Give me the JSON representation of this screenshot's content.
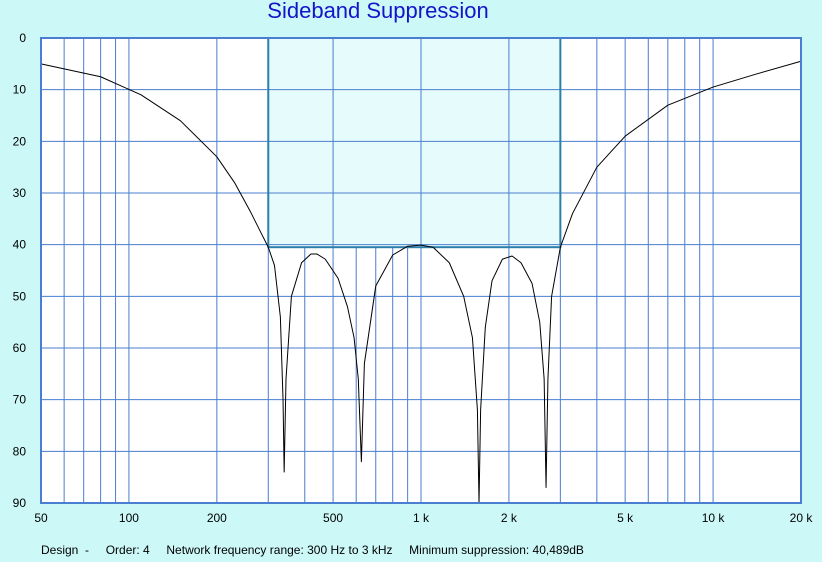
{
  "chart_data": {
    "type": "line",
    "title": "Sideband Suppression",
    "xlabel": "",
    "ylabel": "",
    "x_scale": "log",
    "xlim": [
      50,
      20000
    ],
    "ylim": [
      0,
      90
    ],
    "y_inverted": true,
    "grid": true,
    "x_ticks": [
      {
        "value": 50,
        "label": "50"
      },
      {
        "value": 100,
        "label": "100"
      },
      {
        "value": 200,
        "label": "200"
      },
      {
        "value": 500,
        "label": "500"
      },
      {
        "value": 1000,
        "label": "1 k"
      },
      {
        "value": 2000,
        "label": "2 k"
      },
      {
        "value": 5000,
        "label": "5 k"
      },
      {
        "value": 10000,
        "label": "10 k"
      },
      {
        "value": 20000,
        "label": "20 k"
      }
    ],
    "x_minor_grid": [
      60,
      70,
      80,
      90,
      300,
      400,
      600,
      700,
      800,
      900,
      3000,
      4000,
      6000,
      7000,
      8000,
      9000
    ],
    "y_ticks": [
      {
        "value": 0,
        "label": "0"
      },
      {
        "value": 10,
        "label": "10"
      },
      {
        "value": 20,
        "label": "20"
      },
      {
        "value": 30,
        "label": "30"
      },
      {
        "value": 40,
        "label": "40"
      },
      {
        "value": 50,
        "label": "50"
      },
      {
        "value": 60,
        "label": "60"
      },
      {
        "value": 70,
        "label": "70"
      },
      {
        "value": 80,
        "label": "80"
      },
      {
        "value": 90,
        "label": "90"
      }
    ],
    "band": {
      "x": [
        300,
        3000
      ],
      "y": [
        0,
        40.49
      ]
    },
    "series": [
      {
        "x": [
          50,
          80,
          110,
          150,
          200,
          230,
          260,
          285,
          300,
          315,
          330,
          337,
          340,
          345,
          360,
          390,
          420,
          440,
          470,
          520,
          560,
          590,
          610,
          625,
          640,
          700,
          800,
          900,
          1000,
          1100,
          1250,
          1400,
          1500,
          1560,
          1580,
          1600,
          1660,
          1750,
          1900,
          2050,
          2200,
          2400,
          2550,
          2640,
          2680,
          2720,
          2800,
          3000,
          3300,
          4000,
          5000,
          7000,
          10000,
          14000,
          20000
        ],
        "values": [
          5,
          7.5,
          11,
          16,
          23,
          28,
          33.5,
          38,
          40.5,
          44,
          54,
          70,
          84,
          66,
          50,
          43.5,
          41.8,
          41.8,
          42.8,
          46.5,
          52,
          58,
          66,
          82,
          63,
          48,
          42,
          40.3,
          40.1,
          40.5,
          43.5,
          50,
          58,
          72,
          90,
          72,
          56,
          47,
          42.8,
          42.2,
          43.5,
          47.5,
          55,
          66,
          87,
          66,
          50,
          40.5,
          34,
          25,
          19,
          13,
          9.5,
          7,
          4.5
        ],
        "color": "#000000"
      }
    ],
    "colors": {
      "grid": "#4a7ed0",
      "band_fill": "#e6fbfb",
      "band_edge": "#2c7faa",
      "background": "#cdf8f8",
      "plot_background": "#ffffff",
      "title": "#1414c8"
    }
  },
  "footer": {
    "design": "Design  -",
    "order": "Order: 4",
    "range": "Network frequency range: 300 Hz to 3 kHz",
    "suppression": "Minimum suppression: 40,489dB"
  }
}
